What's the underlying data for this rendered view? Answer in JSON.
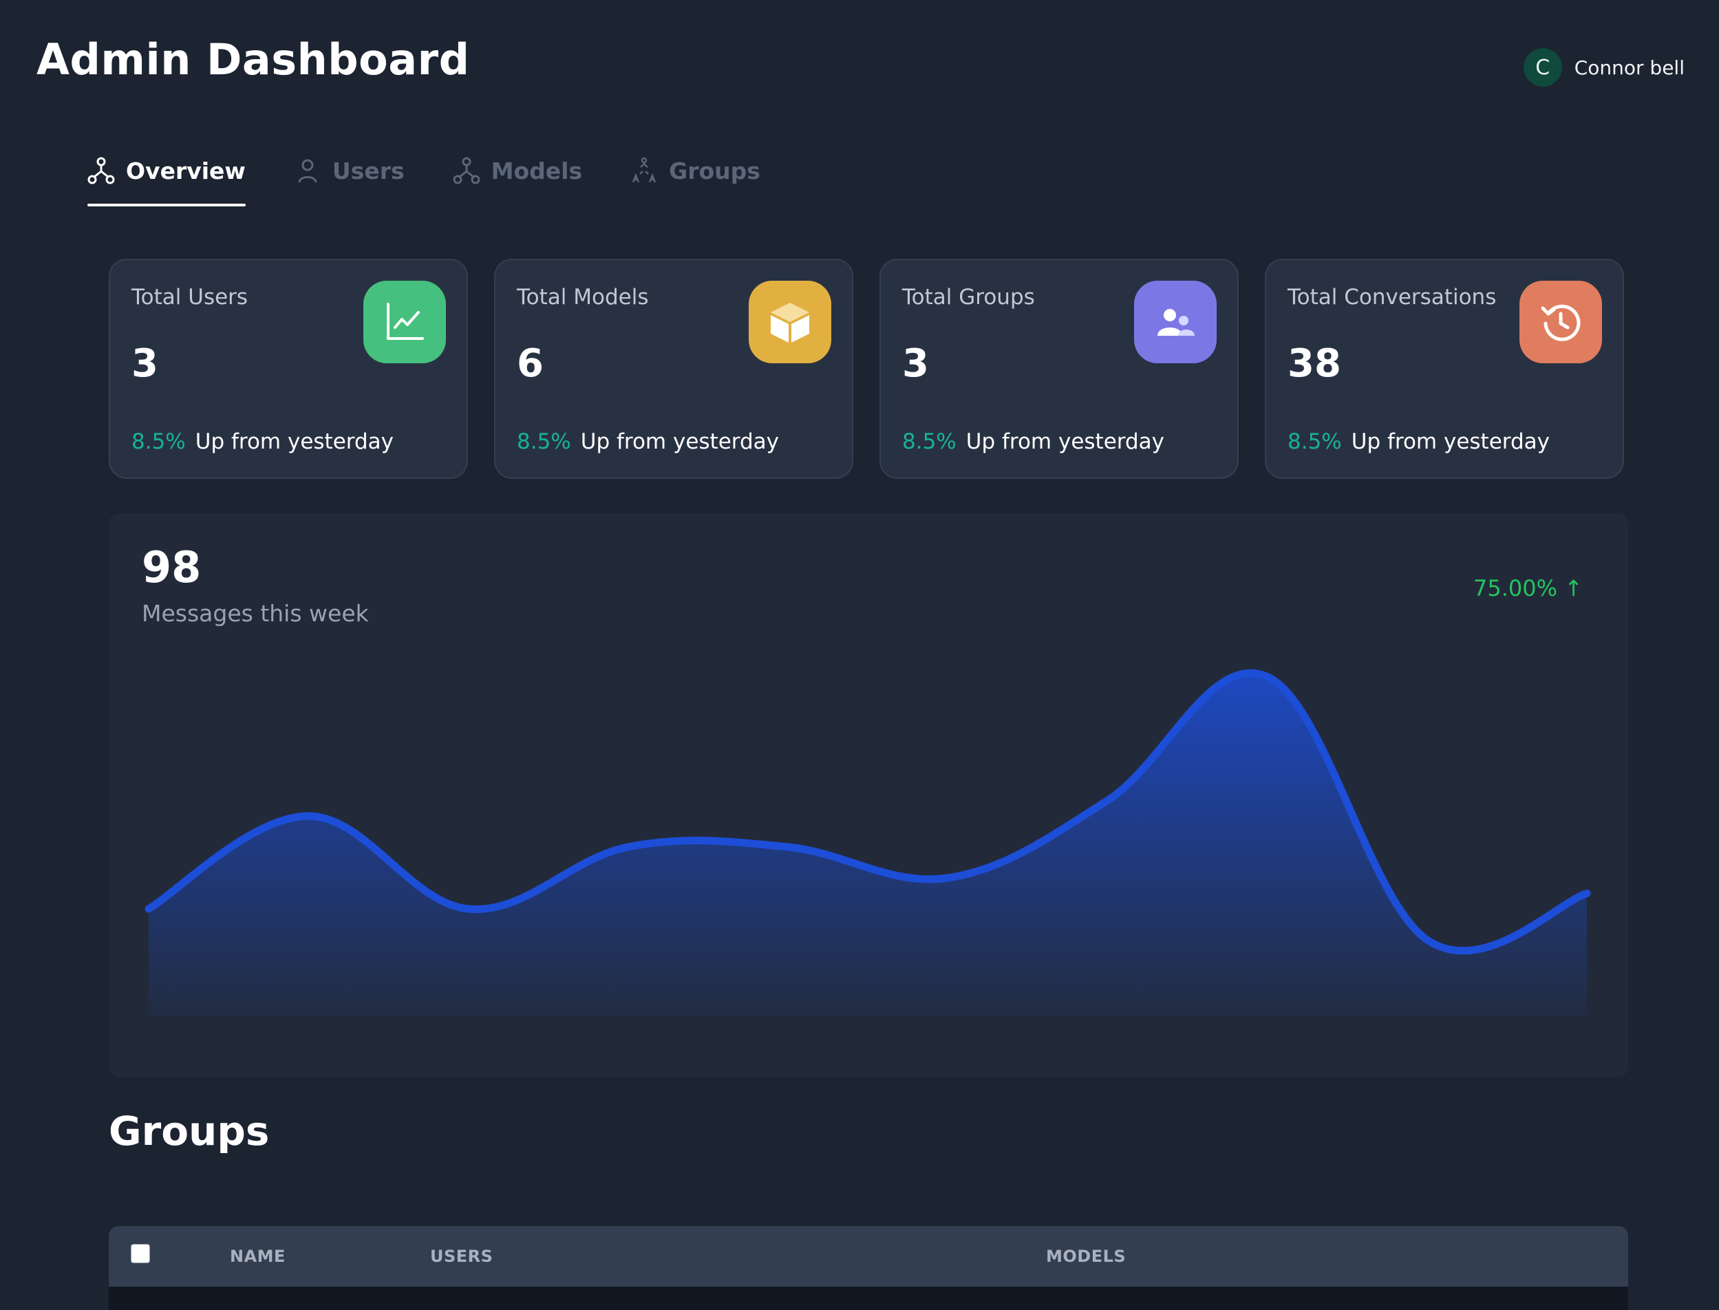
{
  "header": {
    "title": "Admin Dashboard",
    "user": {
      "initial": "C",
      "name": "Connor bell"
    }
  },
  "tabs": [
    {
      "label": "Overview",
      "icon": "overview-nodes-icon",
      "active": true
    },
    {
      "label": "Users",
      "icon": "user-icon",
      "active": false
    },
    {
      "label": "Models",
      "icon": "models-nodes-icon",
      "active": false
    },
    {
      "label": "Groups",
      "icon": "groups-icon",
      "active": false
    }
  ],
  "stats": [
    {
      "label": "Total Users",
      "value": "3",
      "pct": "8.5%",
      "trend": "Up from yesterday",
      "icon": "line-chart-icon",
      "color": "#46c07e"
    },
    {
      "label": "Total Models",
      "value": "6",
      "pct": "8.5%",
      "trend": "Up from yesterday",
      "icon": "cube-icon",
      "color": "#e1b041"
    },
    {
      "label": "Total Groups",
      "value": "3",
      "pct": "8.5%",
      "trend": "Up from yesterday",
      "icon": "people-icon",
      "color": "#7b78e6"
    },
    {
      "label": "Total Conversations",
      "value": "38",
      "pct": "8.5%",
      "trend": "Up from yesterday",
      "icon": "history-icon",
      "color": "#e07d5f"
    }
  ],
  "messages": {
    "total": "98",
    "caption": "Messages this week",
    "change": "75.00% ↑"
  },
  "chart_data": {
    "type": "area",
    "x": [
      0,
      1,
      2,
      3,
      4,
      5,
      6,
      7,
      8,
      9
    ],
    "values": [
      6,
      12,
      6,
      10,
      10,
      8,
      13,
      21,
      4,
      7
    ],
    "ylim": [
      0,
      24
    ],
    "grid": false,
    "legend": "none",
    "color": "#1d4ed8"
  },
  "groups": {
    "title": "Groups",
    "columns": [
      "NAME",
      "USERS",
      "MODELS"
    ]
  }
}
